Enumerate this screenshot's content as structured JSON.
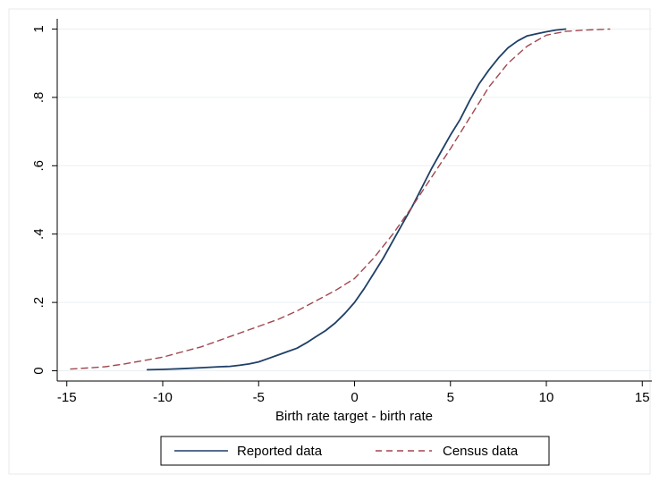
{
  "chart_data": {
    "type": "line",
    "title": "",
    "xlabel": "Birth rate target - birth rate",
    "ylabel": "",
    "xlim": [
      -15.5,
      15.5
    ],
    "ylim": [
      -0.03,
      1.03
    ],
    "xticks": [
      -15,
      -10,
      -5,
      0,
      5,
      10,
      15
    ],
    "xtick_labels": [
      "-15",
      "-10",
      "-5",
      "0",
      "5",
      "10",
      "15"
    ],
    "yticks": [
      0,
      0.2,
      0.4,
      0.6,
      0.8,
      1
    ],
    "ytick_labels": [
      "0",
      ".2",
      ".4",
      ".6",
      ".8",
      "1"
    ],
    "grid": "horizontal",
    "legend_position": "bottom",
    "series": [
      {
        "name": "Reported data",
        "color": "#1f3f66",
        "style": "solid",
        "x": [
          -10.8,
          -10,
          -9,
          -8,
          -7,
          -6.5,
          -6,
          -5.5,
          -5,
          -4.5,
          -4,
          -3.5,
          -3,
          -2.5,
          -2,
          -1.5,
          -1,
          -0.5,
          0,
          0.5,
          1,
          1.5,
          2,
          2.5,
          3,
          3.5,
          4,
          4.5,
          5,
          5.5,
          6,
          6.5,
          7,
          7.5,
          8,
          8.5,
          9,
          9.5,
          10,
          10.5,
          11
        ],
        "y": [
          0.003,
          0.004,
          0.006,
          0.009,
          0.012,
          0.013,
          0.016,
          0.02,
          0.026,
          0.036,
          0.046,
          0.056,
          0.066,
          0.082,
          0.1,
          0.118,
          0.14,
          0.168,
          0.2,
          0.24,
          0.285,
          0.33,
          0.38,
          0.43,
          0.48,
          0.535,
          0.59,
          0.64,
          0.69,
          0.735,
          0.79,
          0.84,
          0.88,
          0.915,
          0.945,
          0.965,
          0.98,
          0.986,
          0.992,
          0.997,
          1.0
        ]
      },
      {
        "name": "Census data",
        "color": "#a0474e",
        "style": "dashed",
        "x": [
          -14.8,
          -14,
          -13,
          -12,
          -11,
          -10,
          -9,
          -8,
          -7,
          -6,
          -5,
          -4,
          -3,
          -2,
          -1,
          0,
          1,
          2,
          3,
          4,
          5,
          6,
          7,
          8,
          9,
          10,
          11,
          12,
          13.3
        ],
        "y": [
          0.005,
          0.008,
          0.012,
          0.02,
          0.03,
          0.04,
          0.055,
          0.07,
          0.09,
          0.11,
          0.13,
          0.15,
          0.175,
          0.205,
          0.235,
          0.27,
          0.33,
          0.4,
          0.48,
          0.565,
          0.65,
          0.74,
          0.83,
          0.9,
          0.95,
          0.982,
          0.993,
          0.997,
          1.0
        ]
      }
    ]
  }
}
